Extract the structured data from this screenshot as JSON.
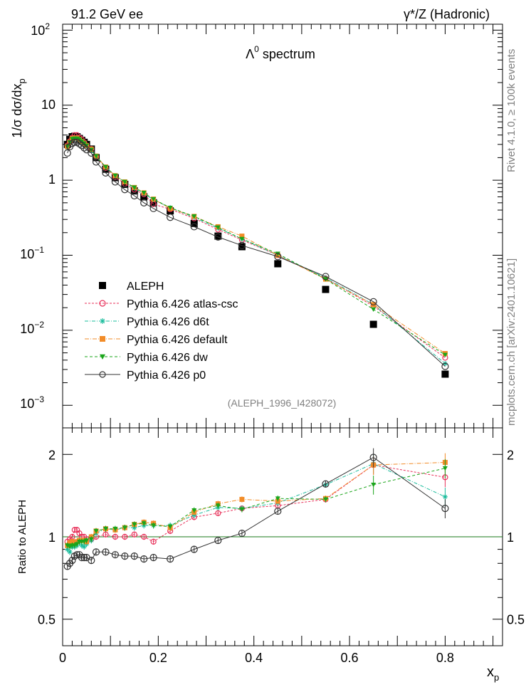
{
  "header": {
    "left": "91.2 GeV ee",
    "right": "γ*/Z (Hadronic)"
  },
  "side_label_top": "Rivet 4.1.0, ≥ 100k events",
  "side_label_bottom": "mcplots.cern.ch [arXiv:2401.10621]",
  "colors": {
    "data": "#000000",
    "atlas_csc": "#e8315a",
    "d6t": "#1abc9c",
    "default": "#f28c28",
    "dw": "#1aa51a",
    "p0": "#333333",
    "ref_line": "#1a7a1a"
  },
  "chart_data": [
    {
      "type": "scatter",
      "title": "Λ⁰ spectrum",
      "title_main": "Λ",
      "title_sup": "0",
      "title_rest": " spectrum",
      "watermark": "(ALEPH_1996_I428072)",
      "yscale": "log",
      "ylim": [
        0.0005,
        120
      ],
      "xlim": [
        0,
        0.92
      ],
      "ylabel": "1/σ  dσ/dx",
      "ylabel_sub": "p",
      "ytick_labels": [
        {
          "base": "10",
          "exp": "2"
        },
        {
          "base": "10",
          "exp": ""
        },
        {
          "base": "1",
          "exp": ""
        },
        {
          "base": "10",
          "exp": "−1"
        },
        {
          "base": "10",
          "exp": "−2"
        },
        {
          "base": "10",
          "exp": "−3"
        }
      ],
      "x": [
        0.01,
        0.015,
        0.02,
        0.025,
        0.03,
        0.035,
        0.04,
        0.045,
        0.05,
        0.06,
        0.07,
        0.09,
        0.11,
        0.13,
        0.15,
        0.17,
        0.19,
        0.225,
        0.275,
        0.325,
        0.375,
        0.45,
        0.55,
        0.65,
        0.8
      ],
      "legend_position": "lower-left",
      "series": [
        {
          "name": "ALEPH",
          "key": "data",
          "marker": "square",
          "values": [
            3.0,
            3.5,
            3.8,
            3.85,
            3.8,
            3.6,
            3.4,
            3.2,
            3.0,
            2.6,
            2.0,
            1.4,
            1.08,
            0.88,
            0.72,
            0.6,
            0.5,
            0.39,
            0.265,
            0.18,
            0.13,
            0.077,
            0.035,
            0.012,
            0.0026
          ]
        },
        {
          "name": "Pythia 6.426 atlas-csc",
          "key": "atlas_csc",
          "marker": "open-circle",
          "dash": "3,2",
          "values": [
            2.9,
            3.3,
            3.7,
            4.0,
            4.0,
            3.7,
            3.5,
            3.2,
            2.9,
            2.6,
            2.05,
            1.45,
            1.1,
            0.9,
            0.75,
            0.65,
            0.48,
            0.41,
            0.31,
            0.22,
            0.16,
            0.1,
            0.049,
            0.021,
            0.0043
          ]
        },
        {
          "name": "Pythia 6.426 d6t",
          "key": "d6t",
          "marker": "asterisk",
          "dash": "5,2,1,2",
          "values": [
            2.7,
            3.1,
            3.5,
            3.55,
            3.55,
            3.4,
            3.2,
            3.0,
            2.85,
            2.5,
            2.05,
            1.5,
            1.15,
            0.95,
            0.78,
            0.66,
            0.55,
            0.43,
            0.32,
            0.23,
            0.165,
            0.1,
            0.05,
            0.022,
            0.0036
          ]
        },
        {
          "name": "Pythia 6.426 default",
          "key": "default",
          "marker": "square",
          "dash": "6,2,1,2",
          "values": [
            2.8,
            3.2,
            3.6,
            3.65,
            3.65,
            3.5,
            3.3,
            3.1,
            2.9,
            2.6,
            2.1,
            1.5,
            1.15,
            0.95,
            0.8,
            0.68,
            0.56,
            0.42,
            0.33,
            0.24,
            0.18,
            0.1,
            0.048,
            0.022,
            0.0049
          ]
        },
        {
          "name": "Pythia 6.426 dw",
          "key": "dw",
          "marker": "triangle-down",
          "dash": "4,3",
          "values": [
            2.8,
            3.2,
            3.55,
            3.6,
            3.6,
            3.5,
            3.3,
            3.1,
            2.9,
            2.55,
            2.1,
            1.5,
            1.15,
            0.95,
            0.8,
            0.68,
            0.56,
            0.43,
            0.33,
            0.235,
            0.165,
            0.105,
            0.048,
            0.019,
            0.0047
          ]
        },
        {
          "name": "Pythia 6.426 p0",
          "key": "p0",
          "marker": "open-circle",
          "dash": "",
          "values": [
            2.3,
            2.8,
            3.1,
            3.2,
            3.2,
            3.05,
            2.9,
            2.7,
            2.55,
            2.3,
            1.75,
            1.25,
            0.95,
            0.75,
            0.62,
            0.5,
            0.42,
            0.32,
            0.24,
            0.175,
            0.135,
            0.096,
            0.052,
            0.024,
            0.0033
          ]
        }
      ]
    },
    {
      "type": "scatter",
      "title": "Ratio to ALEPH",
      "ylabel": "Ratio to ALEPH",
      "xlabel": "x",
      "xlabel_sub": "p",
      "yscale": "log",
      "ylim": [
        0.4,
        2.5
      ],
      "xlim": [
        0,
        0.92
      ],
      "yticks": [
        0.5,
        1,
        2
      ],
      "ytick_labels": [
        "0.5",
        "1",
        "2"
      ],
      "xticks": [
        0,
        0.2,
        0.4,
        0.6,
        0.8
      ],
      "xtick_labels": [
        "0",
        "0.2",
        "0.4",
        "0.6",
        "0.8"
      ],
      "x": [
        0.01,
        0.015,
        0.02,
        0.025,
        0.03,
        0.035,
        0.04,
        0.045,
        0.05,
        0.06,
        0.07,
        0.09,
        0.11,
        0.13,
        0.15,
        0.17,
        0.19,
        0.225,
        0.275,
        0.325,
        0.375,
        0.45,
        0.55,
        0.65,
        0.8
      ],
      "series": [
        {
          "name": "Pythia 6.426 atlas-csc",
          "key": "atlas_csc",
          "marker": "open-circle",
          "dash": "3,2",
          "values": [
            0.96,
            0.98,
            1.0,
            1.06,
            1.06,
            1.03,
            1.0,
            1.0,
            0.98,
            0.98,
            1.0,
            1.02,
            1.0,
            1.0,
            1.02,
            1.0,
            0.96,
            1.05,
            1.18,
            1.22,
            1.27,
            1.3,
            1.37,
            1.83,
            1.65
          ]
        },
        {
          "name": "Pythia 6.426 d6t",
          "key": "d6t",
          "marker": "asterisk",
          "dash": "5,2,1,2",
          "values": [
            0.9,
            0.88,
            0.92,
            0.92,
            0.93,
            0.95,
            0.93,
            0.92,
            0.94,
            0.97,
            1.03,
            1.07,
            1.06,
            1.08,
            1.08,
            1.1,
            1.1,
            1.1,
            1.2,
            1.28,
            1.27,
            1.33,
            1.55,
            1.85,
            1.4
          ]
        },
        {
          "name": "Pythia 6.426 default",
          "key": "default",
          "marker": "square",
          "dash": "6,2,1,2",
          "values": [
            0.93,
            0.95,
            0.96,
            0.95,
            0.96,
            0.97,
            0.97,
            0.97,
            0.96,
            1.0,
            1.05,
            1.07,
            1.06,
            1.08,
            1.11,
            1.13,
            1.12,
            1.08,
            1.23,
            1.32,
            1.37,
            1.35,
            1.38,
            1.83,
            1.87
          ]
        },
        {
          "name": "Pythia 6.426 dw",
          "key": "dw",
          "marker": "triangle-down",
          "dash": "4,3",
          "values": [
            0.93,
            0.92,
            0.93,
            0.93,
            0.94,
            0.96,
            0.96,
            0.96,
            0.97,
            0.98,
            1.05,
            1.07,
            1.07,
            1.08,
            1.11,
            1.12,
            1.1,
            1.09,
            1.25,
            1.3,
            1.26,
            1.38,
            1.37,
            1.55,
            1.78
          ]
        },
        {
          "name": "Pythia 6.426 p0",
          "key": "p0",
          "marker": "open-circle",
          "dash": "",
          "values": [
            0.78,
            0.8,
            0.82,
            0.85,
            0.86,
            0.86,
            0.84,
            0.84,
            0.84,
            0.82,
            0.88,
            0.88,
            0.86,
            0.85,
            0.85,
            0.83,
            0.84,
            0.83,
            0.9,
            0.97,
            1.03,
            1.24,
            1.56,
            1.95,
            1.27
          ]
        }
      ]
    }
  ]
}
